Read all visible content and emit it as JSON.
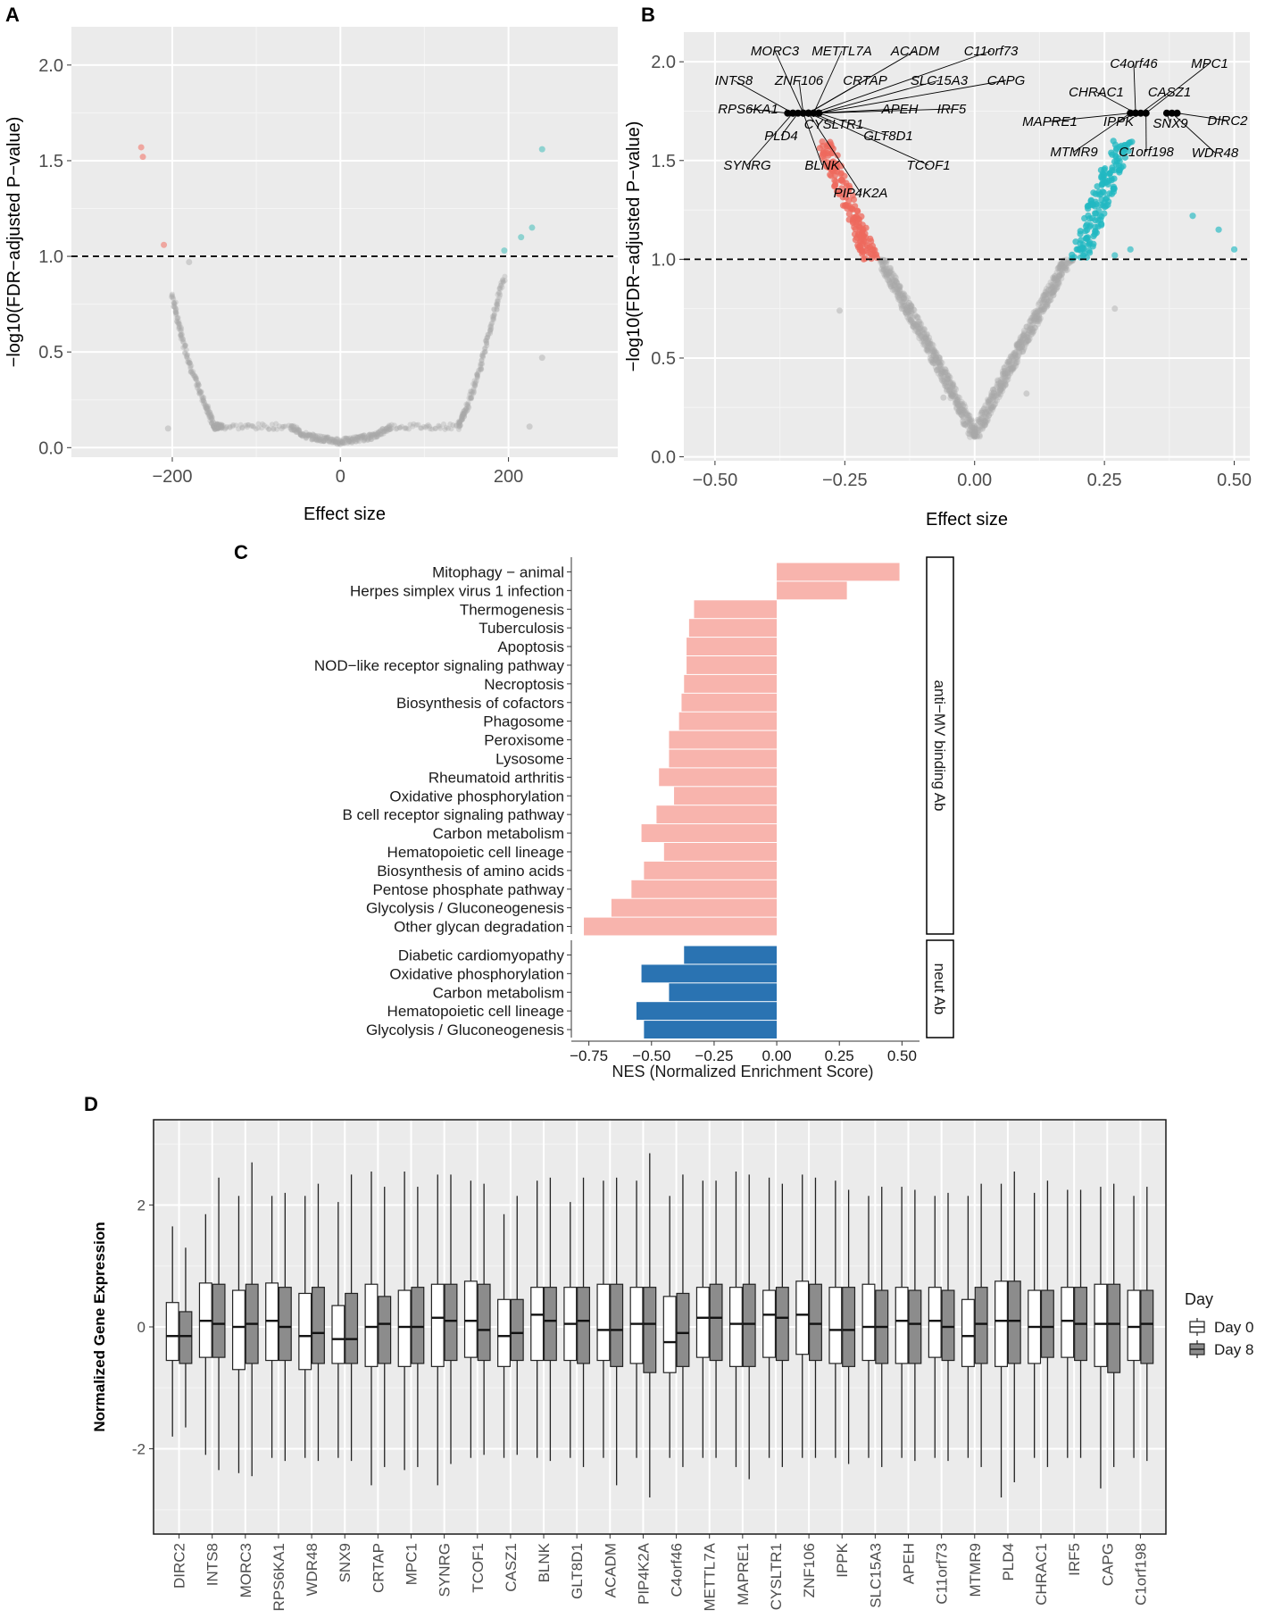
{
  "chart_data": [
    {
      "panel": "A",
      "type": "scatter",
      "subtype": "volcano",
      "xlabel": "Effect size",
      "ylabel": "−log10(FDR−adjusted P−value)",
      "xlim": [
        -320,
        330
      ],
      "ylim": [
        -0.05,
        2.2
      ],
      "xticks": [
        -200,
        0,
        200
      ],
      "xtick_labels": [
        "−200",
        "0",
        "200"
      ],
      "yticks": [
        0.0,
        0.5,
        1.0,
        1.5,
        2.0
      ],
      "ytick_labels": [
        "0.0",
        "0.5",
        "1.0",
        "1.5",
        "2.0"
      ],
      "threshold_y": 1.0,
      "colors": {
        "up": "#67c7c4",
        "down": "#f0958c",
        "ns": "#a8a8a8",
        "panel_bg": "#ebebeb"
      },
      "points_up": [
        [
          195,
          1.03
        ],
        [
          215,
          1.1
        ],
        [
          228,
          1.15
        ],
        [
          240,
          1.56
        ]
      ],
      "points_down": [
        [
          -210,
          1.06
        ],
        [
          -237,
          1.57
        ],
        [
          -235,
          1.52
        ]
      ],
      "points_ns_extra": [
        [
          240,
          0.47
        ],
        [
          225,
          0.11
        ],
        [
          -205,
          0.1
        ],
        [
          -180,
          0.97
        ]
      ],
      "envelope": [
        [
          -200,
          0.8
        ],
        [
          -190,
          0.6
        ],
        [
          -175,
          0.38
        ],
        [
          -160,
          0.22
        ],
        [
          -150,
          0.11
        ],
        [
          -140,
          0.11
        ],
        [
          -60,
          0.11
        ],
        [
          -40,
          0.06
        ],
        [
          -20,
          0.045
        ],
        [
          0,
          0.03
        ],
        [
          20,
          0.045
        ],
        [
          40,
          0.06
        ],
        [
          60,
          0.11
        ],
        [
          140,
          0.11
        ],
        [
          150,
          0.2
        ],
        [
          165,
          0.4
        ],
        [
          180,
          0.65
        ],
        [
          195,
          0.9
        ]
      ]
    },
    {
      "panel": "B",
      "type": "scatter",
      "subtype": "volcano",
      "xlabel": "Effect size",
      "ylabel": "−log10(FDR−adjusted P−value)",
      "xlim": [
        -0.56,
        0.53
      ],
      "ylim": [
        -0.02,
        2.15
      ],
      "xticks": [
        -0.5,
        -0.25,
        0.0,
        0.25,
        0.5
      ],
      "xtick_labels": [
        "−0.50",
        "−0.25",
        "0.00",
        "0.25",
        "0.50"
      ],
      "yticks": [
        0.0,
        0.5,
        1.0,
        1.5,
        2.0
      ],
      "ytick_labels": [
        "0.0",
        "0.5",
        "1.0",
        "1.5",
        "2.0"
      ],
      "threshold_y": 1.0,
      "colors": {
        "up": "#22b8c2",
        "down": "#ee6a5e",
        "ns": "#a8a8a8",
        "labeled": "#000000"
      },
      "points_up_extra": [
        [
          0.42,
          1.22
        ],
        [
          0.47,
          1.15
        ],
        [
          0.5,
          1.05
        ],
        [
          0.27,
          1.02
        ],
        [
          0.3,
          1.05
        ]
      ],
      "points_ns_extra": [
        [
          -0.26,
          0.74
        ],
        [
          -0.14,
          0.75
        ],
        [
          0.27,
          0.75
        ],
        [
          -0.06,
          0.3
        ],
        [
          0.1,
          0.32
        ]
      ],
      "labeled_genes": [
        {
          "name": "MORC3",
          "x": -0.33,
          "y": 1.74
        },
        {
          "name": "METTL7A",
          "x": -0.31,
          "y": 1.74
        },
        {
          "name": "ACADM",
          "x": -0.32,
          "y": 1.74
        },
        {
          "name": "C11orf73",
          "x": -0.31,
          "y": 1.74
        },
        {
          "name": "INTS8",
          "x": -0.35,
          "y": 1.74
        },
        {
          "name": "ZNF106",
          "x": -0.33,
          "y": 1.74
        },
        {
          "name": "CRTAP",
          "x": -0.32,
          "y": 1.74
        },
        {
          "name": "SLC15A3",
          "x": -0.3,
          "y": 1.74
        },
        {
          "name": "CAPG",
          "x": -0.3,
          "y": 1.74
        },
        {
          "name": "RPS6KA1",
          "x": -0.36,
          "y": 1.74
        },
        {
          "name": "APEH",
          "x": -0.31,
          "y": 1.74
        },
        {
          "name": "IRF5",
          "x": -0.3,
          "y": 1.74
        },
        {
          "name": "PLD4",
          "x": -0.34,
          "y": 1.74
        },
        {
          "name": "CYSLTR1",
          "x": -0.32,
          "y": 1.74
        },
        {
          "name": "GLT8D1",
          "x": -0.3,
          "y": 1.74
        },
        {
          "name": "SYNRG",
          "x": -0.35,
          "y": 1.74
        },
        {
          "name": "BLNK",
          "x": -0.33,
          "y": 1.74
        },
        {
          "name": "TCOF1",
          "x": -0.31,
          "y": 1.74
        },
        {
          "name": "PIP4K2A",
          "x": -0.32,
          "y": 1.74
        },
        {
          "name": "C4orf46",
          "x": 0.31,
          "y": 1.74
        },
        {
          "name": "MPC1",
          "x": 0.33,
          "y": 1.74
        },
        {
          "name": "CHRAC1",
          "x": 0.31,
          "y": 1.74
        },
        {
          "name": "CASZ1",
          "x": 0.32,
          "y": 1.74
        },
        {
          "name": "MAPRE1",
          "x": 0.3,
          "y": 1.74
        },
        {
          "name": "IPPK",
          "x": 0.31,
          "y": 1.74
        },
        {
          "name": "SNX9",
          "x": 0.37,
          "y": 1.74
        },
        {
          "name": "DIRC2",
          "x": 0.39,
          "y": 1.74
        },
        {
          "name": "MTMR9",
          "x": 0.3,
          "y": 1.74
        },
        {
          "name": "C1orf198",
          "x": 0.33,
          "y": 1.74
        },
        {
          "name": "WDR48",
          "x": 0.38,
          "y": 1.74
        }
      ]
    },
    {
      "panel": "C",
      "type": "bar",
      "orientation": "horizontal",
      "xlabel": "NES (Normalized Enrichment Score)",
      "xlim": [
        -0.82,
        0.57
      ],
      "xticks": [
        -0.75,
        -0.5,
        -0.25,
        0.0,
        0.25,
        0.5
      ],
      "xtick_labels": [
        "−0.75",
        "−0.50",
        "−0.25",
        "0.00",
        "0.25",
        "0.50"
      ],
      "facets": [
        {
          "strip_label": "anti−MV binding Ab",
          "color": "#f8b4ad",
          "categories": [
            "Mitophagy − animal",
            "Herpes simplex virus 1 infection",
            "Thermogenesis",
            "Tuberculosis",
            "Apoptosis",
            "NOD−like receptor signaling pathway",
            "Necroptosis",
            "Biosynthesis of cofactors",
            "Phagosome",
            "Peroxisome",
            "Lysosome",
            "Rheumatoid arthritis",
            "Oxidative phosphorylation",
            "B cell receptor signaling pathway",
            "Carbon metabolism",
            "Hematopoietic cell lineage",
            "Biosynthesis of amino acids",
            "Pentose phosphate pathway",
            "Glycolysis / Gluconeogenesis",
            "Other glycan degradation"
          ],
          "values": [
            0.49,
            0.28,
            -0.33,
            -0.35,
            -0.36,
            -0.36,
            -0.37,
            -0.38,
            -0.39,
            -0.43,
            -0.43,
            -0.47,
            -0.41,
            -0.48,
            -0.54,
            -0.45,
            -0.53,
            -0.58,
            -0.66,
            -0.77
          ]
        },
        {
          "strip_label": "neut Ab",
          "color": "#2a73b2",
          "categories": [
            "Diabetic cardiomyopathy",
            "Oxidative phosphorylation",
            "Carbon metabolism",
            "Hematopoietic cell lineage",
            "Glycolysis / Gluconeogenesis"
          ],
          "values": [
            -0.37,
            -0.54,
            -0.43,
            -0.56,
            -0.53
          ]
        }
      ]
    },
    {
      "panel": "D",
      "type": "boxplot",
      "ylabel": "Normalized Gene Expression",
      "ylim": [
        -3.4,
        3.4
      ],
      "yticks": [
        -2,
        0,
        2
      ],
      "ytick_labels": [
        "-2",
        "0",
        "2"
      ],
      "legend": {
        "title": "Day",
        "entries": [
          "Day 0",
          "Day 8"
        ],
        "colors": [
          "#ffffff",
          "#8c8c8c"
        ],
        "position": "right"
      },
      "categories": [
        "DIRC2",
        "INTS8",
        "MORC3",
        "RPS6KA1",
        "WDR48",
        "SNX9",
        "CRTAP",
        "MPC1",
        "SYNRG",
        "TCOF1",
        "CASZ1",
        "BLNK",
        "GLT8D1",
        "ACADM",
        "PIP4K2A",
        "C4orf46",
        "METTL7A",
        "MAPRE1",
        "CYSLTR1",
        "ZNF106",
        "IPPK",
        "SLC15A3",
        "APEH",
        "C11orf73",
        "MTMR9",
        "PLD4",
        "CHRAC1",
        "IRF5",
        "CAPG",
        "C1orf198"
      ],
      "series": [
        {
          "name": "Day 0",
          "boxes": [
            [
              -1.8,
              -0.55,
              -0.15,
              0.4,
              1.65
            ],
            [
              -2.1,
              -0.5,
              0.1,
              0.72,
              1.85
            ],
            [
              -2.4,
              -0.7,
              0.0,
              0.6,
              2.15
            ],
            [
              -2.15,
              -0.55,
              0.1,
              0.72,
              2.15
            ],
            [
              -2.15,
              -0.7,
              -0.15,
              0.55,
              2.15
            ],
            [
              -2.15,
              -0.6,
              -0.2,
              0.35,
              2.05
            ],
            [
              -2.6,
              -0.65,
              0.0,
              0.7,
              2.55
            ],
            [
              -2.35,
              -0.65,
              0.0,
              0.6,
              2.55
            ],
            [
              -2.6,
              -0.65,
              0.15,
              0.7,
              2.5
            ],
            [
              -2.15,
              -0.5,
              0.1,
              0.75,
              2.4
            ],
            [
              -2.15,
              -0.65,
              -0.15,
              0.45,
              1.85
            ],
            [
              -2.15,
              -0.55,
              0.2,
              0.65,
              2.4
            ],
            [
              -2.15,
              -0.55,
              0.05,
              0.65,
              2.05
            ],
            [
              -2.15,
              -0.55,
              -0.05,
              0.7,
              2.4
            ],
            [
              -2.15,
              -0.6,
              0.05,
              0.65,
              2.4
            ],
            [
              -2.15,
              -0.75,
              -0.25,
              0.5,
              2.15
            ],
            [
              -2.15,
              -0.5,
              0.15,
              0.65,
              2.4
            ],
            [
              -2.3,
              -0.65,
              0.05,
              0.65,
              2.55
            ],
            [
              -2.15,
              -0.5,
              0.2,
              0.6,
              2.45
            ],
            [
              -2.15,
              -0.45,
              0.2,
              0.75,
              2.5
            ],
            [
              -2.15,
              -0.6,
              -0.05,
              0.65,
              2.4
            ],
            [
              -2.15,
              -0.55,
              0.0,
              0.7,
              2.15
            ],
            [
              -2.15,
              -0.6,
              0.1,
              0.65,
              2.3
            ],
            [
              -2.15,
              -0.5,
              0.1,
              0.65,
              2.15
            ],
            [
              -2.15,
              -0.65,
              -0.15,
              0.45,
              2.15
            ],
            [
              -2.8,
              -0.65,
              0.1,
              0.75,
              2.35
            ],
            [
              -2.15,
              -0.6,
              0.0,
              0.6,
              2.2
            ],
            [
              -2.15,
              -0.5,
              0.1,
              0.65,
              2.25
            ],
            [
              -2.65,
              -0.65,
              0.05,
              0.7,
              2.3
            ],
            [
              -2.15,
              -0.55,
              0.0,
              0.6,
              2.15
            ]
          ]
        },
        {
          "name": "Day 8",
          "boxes": [
            [
              -1.65,
              -0.6,
              -0.15,
              0.25,
              1.3
            ],
            [
              -2.35,
              -0.5,
              0.05,
              0.7,
              2.45
            ],
            [
              -2.45,
              -0.6,
              0.05,
              0.7,
              2.7
            ],
            [
              -2.2,
              -0.55,
              0.0,
              0.65,
              2.2
            ],
            [
              -2.2,
              -0.6,
              -0.1,
              0.65,
              2.35
            ],
            [
              -2.2,
              -0.6,
              -0.2,
              0.55,
              2.5
            ],
            [
              -2.3,
              -0.6,
              0.05,
              0.5,
              2.3
            ],
            [
              -2.3,
              -0.6,
              0.0,
              0.65,
              2.3
            ],
            [
              -2.25,
              -0.55,
              0.1,
              0.7,
              2.5
            ],
            [
              -2.1,
              -0.55,
              -0.05,
              0.7,
              2.35
            ],
            [
              -2.1,
              -0.55,
              -0.1,
              0.45,
              2.15
            ],
            [
              -2.2,
              -0.55,
              0.1,
              0.65,
              2.45
            ],
            [
              -2.3,
              -0.6,
              0.1,
              0.65,
              2.45
            ],
            [
              -2.6,
              -0.65,
              -0.05,
              0.7,
              2.45
            ],
            [
              -2.8,
              -0.75,
              0.05,
              0.65,
              2.85
            ],
            [
              -2.3,
              -0.65,
              -0.1,
              0.55,
              2.5
            ],
            [
              -2.15,
              -0.55,
              0.15,
              0.7,
              2.4
            ],
            [
              -2.5,
              -0.65,
              0.05,
              0.7,
              2.5
            ],
            [
              -2.3,
              -0.55,
              0.15,
              0.65,
              2.35
            ],
            [
              -2.15,
              -0.55,
              0.05,
              0.7,
              2.45
            ],
            [
              -2.25,
              -0.65,
              -0.05,
              0.65,
              2.25
            ],
            [
              -2.3,
              -0.6,
              0.0,
              0.6,
              2.3
            ],
            [
              -2.2,
              -0.6,
              0.05,
              0.6,
              2.25
            ],
            [
              -2.2,
              -0.55,
              0.0,
              0.6,
              2.2
            ],
            [
              -2.3,
              -0.6,
              0.05,
              0.65,
              2.35
            ],
            [
              -2.55,
              -0.6,
              0.1,
              0.75,
              2.55
            ],
            [
              -2.3,
              -0.5,
              0.0,
              0.6,
              2.4
            ],
            [
              -2.15,
              -0.55,
              0.05,
              0.65,
              2.25
            ],
            [
              -2.3,
              -0.75,
              0.05,
              0.7,
              2.35
            ],
            [
              -2.2,
              -0.6,
              0.05,
              0.6,
              2.3
            ]
          ]
        }
      ]
    }
  ]
}
